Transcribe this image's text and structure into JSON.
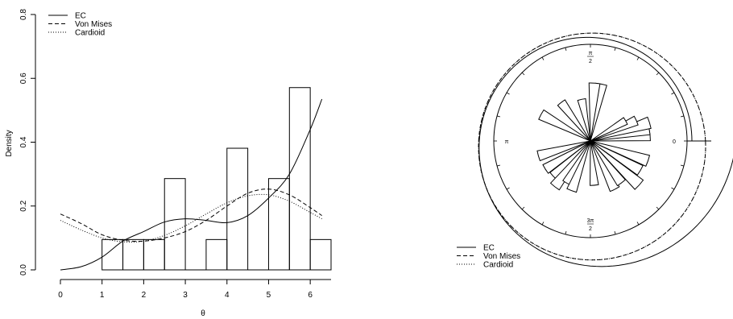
{
  "chart_data": [
    {
      "type": "histogram",
      "title": "",
      "xlabel": "θ",
      "ylabel": "Density",
      "xlim": [
        0,
        6.5
      ],
      "ylim": [
        0,
        0.8
      ],
      "x_ticks": [
        "0",
        "1",
        "2",
        "3",
        "4",
        "5",
        "6"
      ],
      "y_ticks": [
        "0.0",
        "0.2",
        "0.4",
        "0.6",
        "0.8"
      ],
      "grid": false,
      "legend_position": "top-left",
      "bins": [
        {
          "from": 1.0,
          "to": 1.5,
          "density": 0.095
        },
        {
          "from": 1.5,
          "to": 2.0,
          "density": 0.095
        },
        {
          "from": 2.0,
          "to": 2.5,
          "density": 0.095
        },
        {
          "from": 2.5,
          "to": 3.0,
          "density": 0.286
        },
        {
          "from": 3.0,
          "to": 3.5,
          "density": 0.0
        },
        {
          "from": 3.5,
          "to": 4.0,
          "density": 0.095
        },
        {
          "from": 4.0,
          "to": 4.5,
          "density": 0.381
        },
        {
          "from": 4.5,
          "to": 5.0,
          "density": 0.0
        },
        {
          "from": 5.0,
          "to": 5.5,
          "density": 0.286
        },
        {
          "from": 5.5,
          "to": 6.0,
          "density": 0.571
        },
        {
          "from": 6.0,
          "to": 6.5,
          "density": 0.095
        }
      ],
      "series": [
        {
          "name": "EC",
          "line_style": "solid",
          "x": [
            0,
            0.5,
            1.0,
            1.5,
            2.0,
            2.5,
            3.0,
            3.5,
            4.0,
            4.5,
            5.0,
            5.5,
            6.0,
            6.28
          ],
          "y": [
            0.0,
            0.01,
            0.04,
            0.09,
            0.12,
            0.15,
            0.16,
            0.155,
            0.148,
            0.17,
            0.225,
            0.3,
            0.44,
            0.535
          ]
        },
        {
          "name": "Von Mises",
          "line_style": "dashed",
          "x": [
            0,
            0.5,
            1.0,
            1.5,
            2.0,
            2.5,
            3.0,
            3.5,
            4.0,
            4.5,
            5.0,
            5.5,
            6.0,
            6.28
          ],
          "y": [
            0.175,
            0.145,
            0.11,
            0.093,
            0.09,
            0.1,
            0.12,
            0.155,
            0.2,
            0.24,
            0.253,
            0.235,
            0.195,
            0.17
          ]
        },
        {
          "name": "Cardioid",
          "line_style": "dotted",
          "x": [
            0,
            0.5,
            1.0,
            1.5,
            2.0,
            2.5,
            3.0,
            3.5,
            4.0,
            4.5,
            5.0,
            5.5,
            6.0,
            6.28
          ],
          "y": [
            0.155,
            0.125,
            0.1,
            0.088,
            0.09,
            0.108,
            0.138,
            0.175,
            0.21,
            0.232,
            0.235,
            0.215,
            0.18,
            0.16
          ]
        }
      ]
    },
    {
      "type": "rose",
      "title": "",
      "angle_labels": [
        {
          "angle": 0,
          "text": "0"
        },
        {
          "angle": 1.5708,
          "num": "π",
          "den": "2"
        },
        {
          "angle": 3.1416,
          "text": "π"
        },
        {
          "angle": 4.7124,
          "num": "3π",
          "den": "2"
        }
      ],
      "legend_position": "bottom-left",
      "petal_width_rad": 0.19,
      "petals": [
        {
          "angle": 0.1,
          "radius": 0.62
        },
        {
          "angle": 0.2,
          "radius": 0.62
        },
        {
          "angle": 0.3,
          "radius": 0.64
        },
        {
          "angle": 0.42,
          "radius": 0.52
        },
        {
          "angle": 0.52,
          "radius": 0.42
        },
        {
          "angle": 1.38,
          "radius": 0.6
        },
        {
          "angle": 1.5,
          "radius": 0.6
        },
        {
          "angle": 1.78,
          "radius": 0.44
        },
        {
          "angle": 2.22,
          "radius": 0.5
        },
        {
          "angle": 2.65,
          "radius": 0.58
        },
        {
          "angle": 3.42,
          "radius": 0.56
        },
        {
          "angle": 3.7,
          "radius": 0.55
        },
        {
          "angle": 3.9,
          "radius": 0.53
        },
        {
          "angle": 4.05,
          "radius": 0.6
        },
        {
          "angle": 4.2,
          "radius": 0.5
        },
        {
          "angle": 4.35,
          "radius": 0.55
        },
        {
          "angle": 4.8,
          "radius": 0.46
        },
        {
          "angle": 5.18,
          "radius": 0.56
        },
        {
          "angle": 5.35,
          "radius": 0.54
        },
        {
          "angle": 5.55,
          "radius": 0.68
        },
        {
          "angle": 5.75,
          "radius": 0.6
        },
        {
          "angle": 5.95,
          "radius": 0.63
        }
      ],
      "series": [
        {
          "name": "EC",
          "line_style": "solid"
        },
        {
          "name": "Von Mises",
          "line_style": "dashed"
        },
        {
          "name": "Cardioid",
          "line_style": "dotted"
        }
      ]
    }
  ]
}
